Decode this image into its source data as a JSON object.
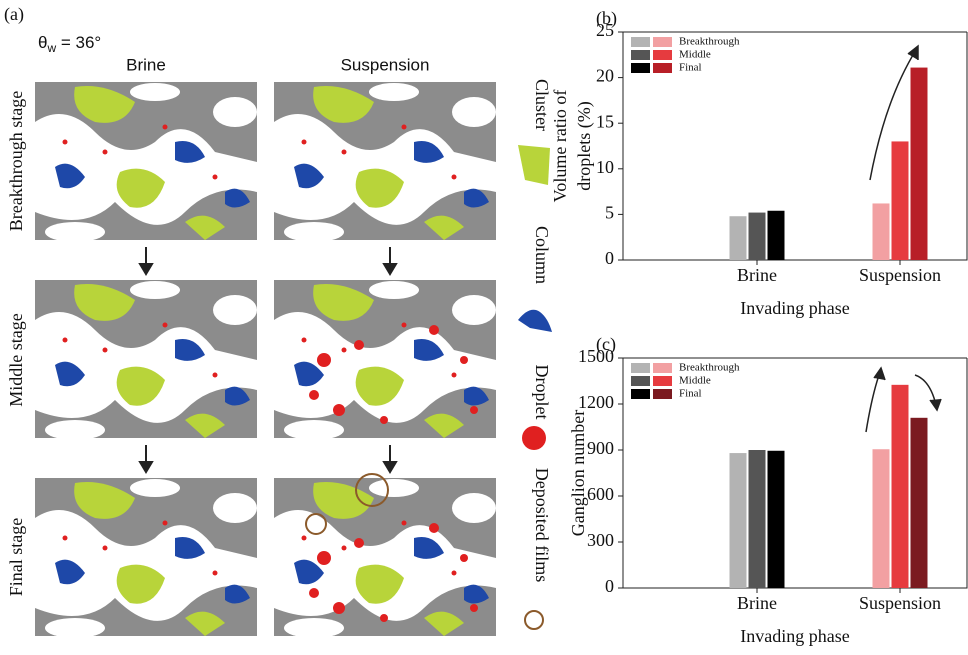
{
  "panel_a": {
    "panel_label": "(a)",
    "angle": {
      "symbol": "θ",
      "subscript": "w",
      "rest": " = 36°"
    },
    "columns": [
      "Brine",
      "Suspension"
    ],
    "rows": [
      "Breakthrough stage",
      "Middle stage",
      "Final stage"
    ],
    "legend": [
      "Cluster",
      "Column",
      "Droplet",
      "Deposited films"
    ]
  },
  "chart_data": [
    {
      "type": "bar",
      "panel_label": "(b)",
      "ylabel": [
        "Volume ratio of",
        "droplets (%)"
      ],
      "xlabel": "Invading phase",
      "categories": [
        "Brine",
        "Suspension"
      ],
      "series": [
        {
          "name": "Breakthrough",
          "colors": [
            "#b3b3b3",
            "#f2a0a2"
          ],
          "values": [
            4.8,
            6.2
          ]
        },
        {
          "name": "Middle",
          "colors": [
            "#555555",
            "#e63b3f"
          ],
          "values": [
            5.2,
            13.0
          ]
        },
        {
          "name": "Final",
          "colors": [
            "#000000",
            "#b81f27"
          ],
          "values": [
            5.4,
            21.1
          ]
        }
      ],
      "ylim": [
        0,
        25
      ],
      "yticks": [
        0,
        5,
        10,
        15,
        20,
        25
      ],
      "legend": "upper left"
    },
    {
      "type": "bar",
      "panel_label": "(c)",
      "ylabel": [
        "Ganglion number"
      ],
      "xlabel": "Invading phase",
      "categories": [
        "Brine",
        "Suspension"
      ],
      "series": [
        {
          "name": "Breakthrough",
          "colors": [
            "#b3b3b3",
            "#f2a0a2"
          ],
          "values": [
            880,
            905
          ]
        },
        {
          "name": "Middle",
          "colors": [
            "#555555",
            "#e63b3f"
          ],
          "values": [
            900,
            1325
          ]
        },
        {
          "name": "Final",
          "colors": [
            "#000000",
            "#7b1a20"
          ],
          "values": [
            895,
            1110
          ]
        }
      ],
      "ylim": [
        0,
        1500
      ],
      "yticks": [
        0,
        300,
        600,
        900,
        1200,
        1500
      ],
      "legend": "upper left"
    }
  ]
}
